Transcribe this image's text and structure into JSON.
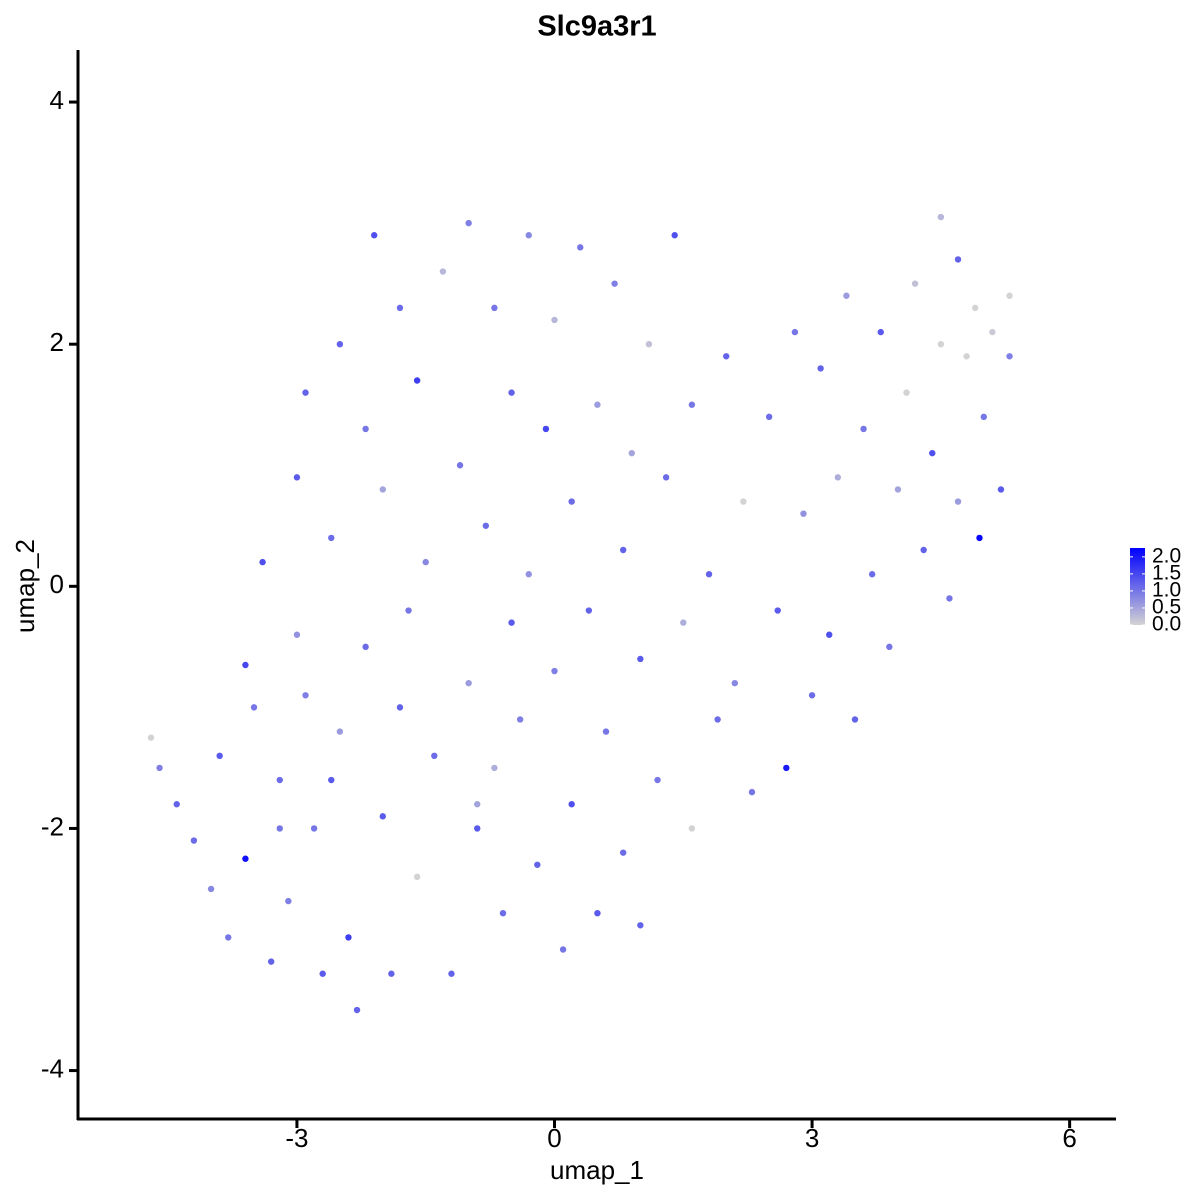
{
  "chart_data": {
    "type": "scatter",
    "title": "Slc9a3r1",
    "x_label": "umap_1",
    "y_label": "umap_2",
    "xlim": [
      -5.55,
      6.54
    ],
    "ylim": [
      -4.4,
      4.43
    ],
    "xticks": [
      -3,
      0,
      3,
      6
    ],
    "yticks": [
      -4,
      -2,
      0,
      2,
      4
    ],
    "low_color": "#d3d3d3",
    "high_color": "#0000ff",
    "color_range": [
      0,
      2.26
    ],
    "color_ticks": [
      {
        "value": 2,
        "label": "2.0"
      },
      {
        "value": 1.5,
        "label": "1.5"
      },
      {
        "value": 1,
        "label": "1.0"
      },
      {
        "value": 0.5,
        "label": "0.5"
      },
      {
        "value": 0,
        "label": "0.0"
      }
    ],
    "x": [
      -4.7,
      -4.6,
      -4.4,
      -4.2,
      -4.0,
      -3.9,
      -3.8,
      -3.6,
      -3.6,
      -3.5,
      -3.4,
      -3.3,
      -3.2,
      -3.1,
      -3.0,
      -3.0,
      -2.9,
      -2.8,
      -2.7,
      -2.6,
      -2.5,
      -2.5,
      -2.4,
      -2.3,
      -2.2,
      -2.2,
      -2.1,
      -2.0,
      -2.0,
      -1.9,
      -1.8,
      -1.7,
      -1.6,
      -1.6,
      -1.5,
      -1.4,
      -1.3,
      -1.2,
      -1.1,
      -1.0,
      -1.0,
      -0.9,
      -0.8,
      -0.7,
      -0.7,
      -0.6,
      -0.5,
      -0.5,
      -0.4,
      -0.3,
      -0.3,
      -0.2,
      -0.1,
      0.0,
      0.0,
      0.1,
      0.2,
      0.2,
      0.3,
      0.4,
      0.5,
      0.5,
      0.6,
      0.7,
      0.8,
      0.8,
      0.9,
      1.0,
      1.0,
      1.1,
      1.2,
      1.3,
      1.4,
      1.5,
      1.6,
      1.6,
      1.8,
      1.9,
      2.0,
      2.1,
      2.2,
      2.3,
      2.5,
      2.6,
      2.7,
      2.8,
      2.9,
      3.0,
      3.1,
      3.2,
      3.3,
      3.4,
      3.5,
      3.6,
      3.7,
      3.8,
      3.9,
      4.0,
      4.1,
      4.2,
      4.3,
      4.4,
      4.5,
      4.5,
      4.6,
      4.7,
      4.7,
      4.8,
      4.9,
      4.95,
      5.0,
      5.1,
      5.2,
      5.3,
      5.3,
      -0.9,
      -1.8,
      -3.2,
      -2.6,
      -2.9
    ],
    "y": [
      -1.25,
      -1.5,
      -1.8,
      -2.1,
      -2.5,
      -1.4,
      -2.9,
      -2.25,
      -0.65,
      -1.0,
      0.2,
      -3.1,
      -1.6,
      -2.6,
      0.9,
      -0.4,
      1.6,
      -2.0,
      -3.2,
      0.4,
      2.0,
      -1.2,
      -2.9,
      -3.5,
      1.3,
      -0.5,
      2.9,
      -1.9,
      0.8,
      -3.2,
      2.3,
      -0.2,
      -2.4,
      1.7,
      0.2,
      -1.4,
      2.6,
      -3.2,
      1.0,
      -0.8,
      3.0,
      -2.0,
      0.5,
      2.3,
      -1.5,
      -2.7,
      1.6,
      -0.3,
      -1.1,
      2.9,
      0.1,
      -2.3,
      1.3,
      -0.7,
      2.2,
      -3.0,
      0.7,
      -1.8,
      2.8,
      -0.2,
      -2.7,
      1.5,
      -1.2,
      2.5,
      0.3,
      -2.2,
      1.1,
      -0.6,
      -2.8,
      2.0,
      -1.6,
      0.9,
      2.9,
      -0.3,
      -2.0,
      1.5,
      0.1,
      -1.1,
      1.9,
      -0.8,
      0.7,
      -1.7,
      1.4,
      -0.2,
      -1.5,
      2.1,
      0.6,
      -0.9,
      1.8,
      -0.4,
      0.9,
      2.4,
      -1.1,
      1.3,
      0.1,
      2.1,
      -0.5,
      0.8,
      1.6,
      2.5,
      0.3,
      1.1,
      3.05,
      2.0,
      -0.1,
      2.7,
      0.7,
      1.9,
      2.3,
      0.4,
      1.4,
      2.1,
      0.8,
      2.4,
      1.9,
      -1.8,
      -1.0,
      -2.0,
      -1.6,
      -0.9
    ],
    "values": [
      0,
      0.9,
      1.2,
      1.1,
      0.8,
      1.3,
      1.0,
      2.1,
      1.5,
      1.0,
      1.4,
      1.2,
      1.1,
      0.9,
      1.3,
      0.7,
      1.2,
      1.0,
      1.3,
      1.1,
      1.2,
      0.6,
      1.6,
      1.2,
      1.0,
      1.1,
      1.4,
      1.3,
      0.5,
      1.2,
      1.1,
      1.0,
      0,
      1.6,
      0.8,
      1.1,
      0.3,
      1.2,
      1.0,
      0.6,
      0.9,
      1.3,
      1.1,
      1.0,
      0.4,
      1.1,
      1.2,
      1.3,
      0.9,
      0.8,
      0.7,
      1.2,
      1.5,
      0.9,
      0.3,
      1.0,
      1.1,
      1.4,
      1.0,
      1.2,
      1.3,
      0.6,
      1.0,
      0.9,
      1.2,
      1.1,
      0.5,
      1.3,
      1.2,
      0.2,
      1.0,
      1.1,
      1.4,
      0.4,
      0,
      1.0,
      1.2,
      1.1,
      1.2,
      0.8,
      0,
      1.0,
      1.1,
      1.3,
      2.0,
      1.0,
      0.7,
      1.1,
      1.2,
      1.4,
      0.4,
      0.6,
      1.2,
      1.0,
      1.1,
      1.3,
      1.0,
      0.5,
      0,
      0.2,
      1.2,
      1.4,
      0.3,
      0,
      1.0,
      1.2,
      0.6,
      0,
      0,
      2.2,
      1.0,
      0.1,
      1.3,
      0,
      0.9,
      0.5,
      1.2,
      1.0,
      1.3,
      0.9
    ]
  }
}
